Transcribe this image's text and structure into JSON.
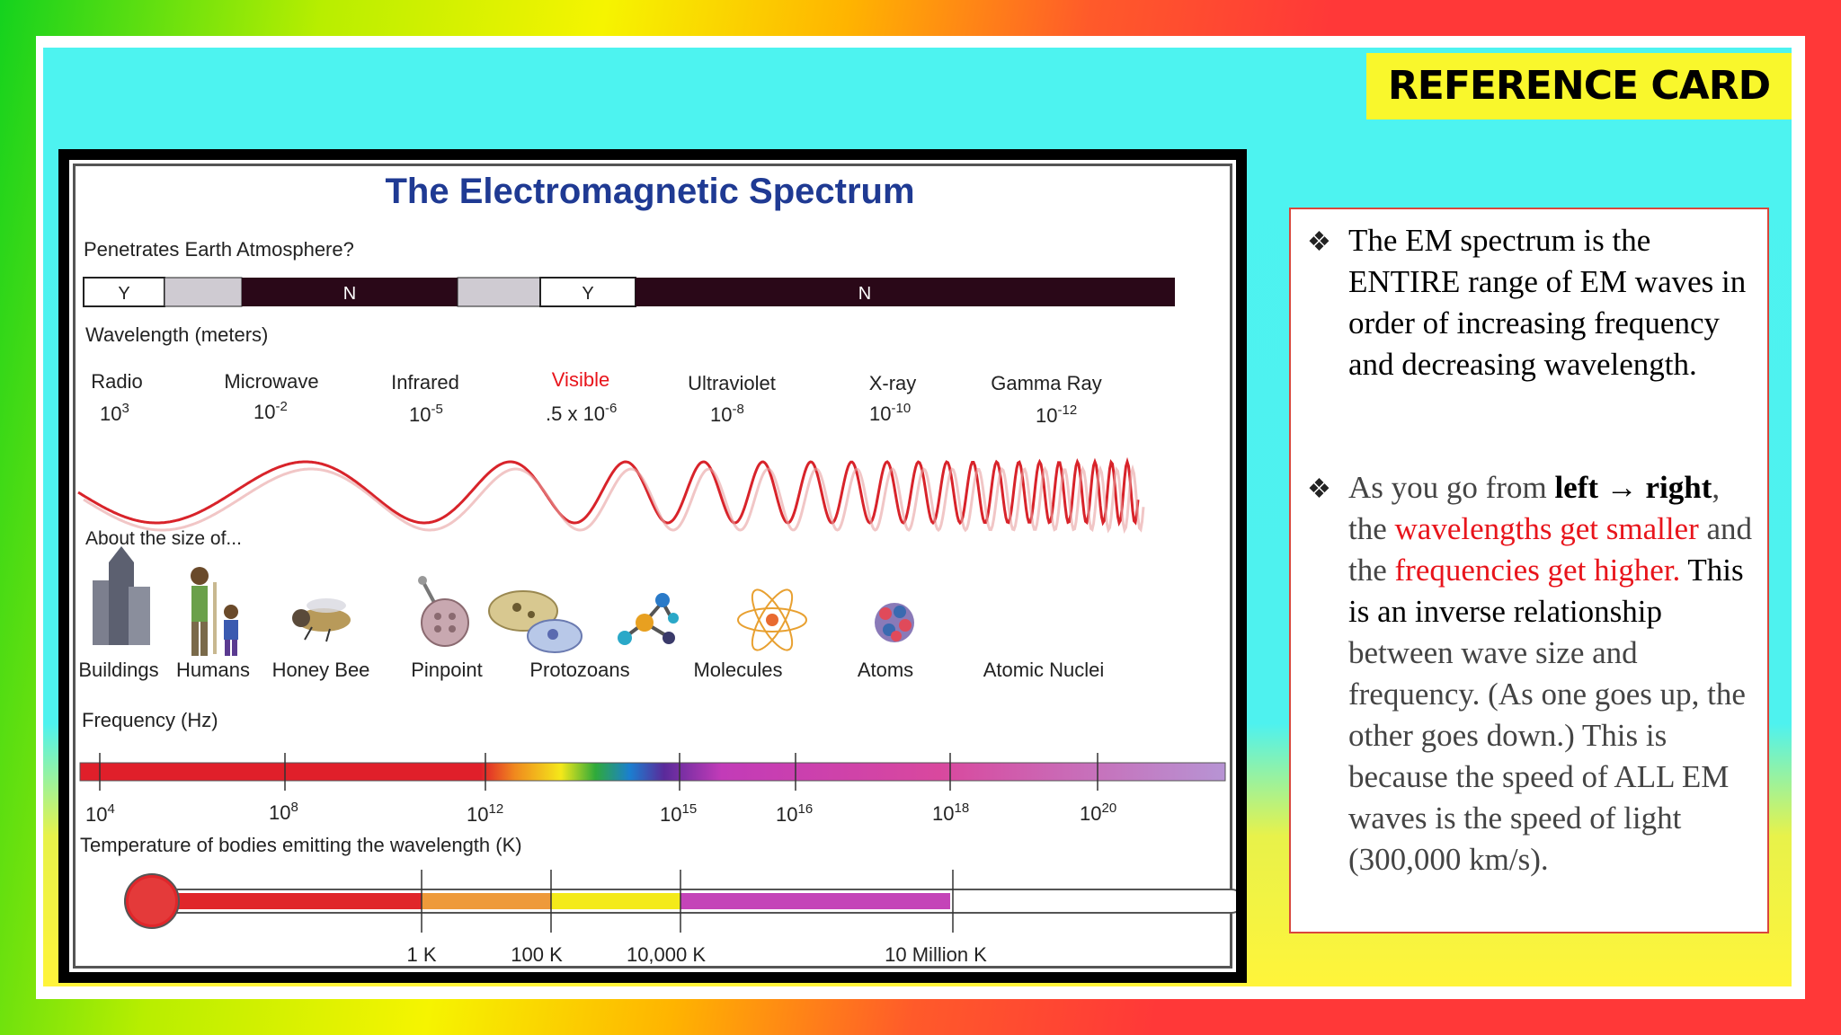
{
  "title_tag": "REFERENCE CARD",
  "diagram": {
    "title": "The Electromagnetic Spectrum",
    "atmosphere_label": "Penetrates Earth Atmosphere?",
    "atmosphere_segments": [
      "Y",
      "",
      "N",
      "",
      "Y",
      "N"
    ],
    "wavelength_label": "Wavelength (meters)",
    "bands": [
      {
        "name": "Radio",
        "base": "10",
        "exp": "3"
      },
      {
        "name": "Microwave",
        "base": "10",
        "exp": "-2"
      },
      {
        "name": "Infrared",
        "base": "10",
        "exp": "-5"
      },
      {
        "name": "Visible",
        "base": ".5 x 10",
        "exp": "-6"
      },
      {
        "name": "Ultraviolet",
        "base": "10",
        "exp": "-8"
      },
      {
        "name": "X-ray",
        "base": "10",
        "exp": "-10"
      },
      {
        "name": "Gamma Ray",
        "base": "10",
        "exp": "-12"
      }
    ],
    "size_label": "About the size of...",
    "sizes": [
      "Buildings",
      "Humans",
      "Honey Bee",
      "Pinpoint",
      "Protozoans",
      "Molecules",
      "Atoms",
      "Atomic Nuclei"
    ],
    "frequency_label": "Frequency (Hz)",
    "frequencies": [
      {
        "base": "10",
        "exp": "4"
      },
      {
        "base": "10",
        "exp": "8"
      },
      {
        "base": "10",
        "exp": "12"
      },
      {
        "base": "10",
        "exp": "15"
      },
      {
        "base": "10",
        "exp": "16"
      },
      {
        "base": "10",
        "exp": "18"
      },
      {
        "base": "10",
        "exp": "20"
      }
    ],
    "temperature_label": "Temperature of bodies emitting the wavelength (K)",
    "temperatures": [
      "1 K",
      "100 K",
      "10,000 K",
      "10 Million K"
    ]
  },
  "notes": {
    "bullet_symbol": "❖",
    "p1": "The EM spectrum is the ENTIRE range of EM waves in order of increasing frequency and decreasing wavelength.",
    "p2": {
      "a": "As you go from ",
      "b": "left →",
      "c": "right",
      "d": ", the ",
      "e": "wavelengths get smaller",
      "f": " and the ",
      "g": "frequencies get higher.",
      "h": " This is an inverse relationship",
      "i": " between wave size and frequency. (As one goes up, the other goes down.) This is because the speed of ALL EM waves is the speed of light (300,000 km/s)."
    }
  },
  "colors": {
    "title_blue": "#1f3a93",
    "accent_red": "#e8141b",
    "tag_yellow": "#f9f72c"
  }
}
